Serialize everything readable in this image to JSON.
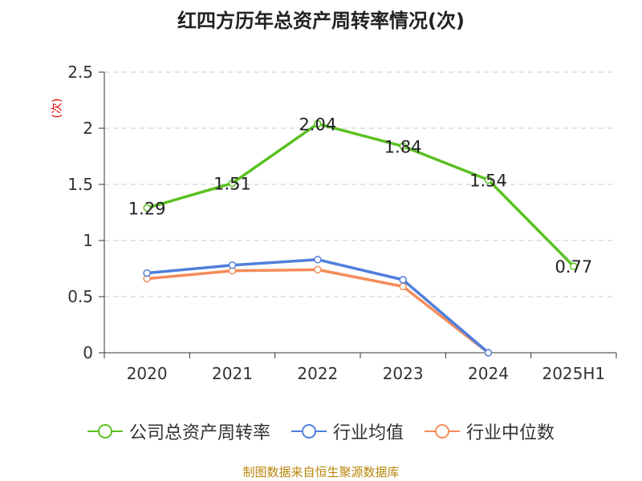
{
  "chart_data": {
    "type": "line",
    "title": "红四方历年总资产周转率情况(次)",
    "ylabel": "(次)",
    "categories": [
      "2020",
      "2021",
      "2022",
      "2023",
      "2024",
      "2025H1"
    ],
    "ylim": [
      0,
      2.5
    ],
    "yticks": [
      "0",
      "0.5",
      "1",
      "1.5",
      "2",
      "2.5"
    ],
    "grid": true,
    "legend_position": "bottom",
    "series": [
      {
        "name": "公司总资产周转率",
        "color": "#5ac121",
        "values": [
          1.29,
          1.51,
          2.04,
          1.84,
          1.54,
          0.77
        ],
        "labels": [
          "1.29",
          "1.51",
          "2.04",
          "1.84",
          "1.54",
          "0.77"
        ]
      },
      {
        "name": "行业均值",
        "color": "#4f7fdc",
        "values": [
          0.71,
          0.78,
          0.83,
          0.65,
          0.0,
          null
        ]
      },
      {
        "name": "行业中位数",
        "color": "#f58c5a",
        "values": [
          0.66,
          0.73,
          0.74,
          0.59,
          0.0,
          null
        ]
      }
    ]
  },
  "source": "制图数据来自恒生聚源数据库"
}
